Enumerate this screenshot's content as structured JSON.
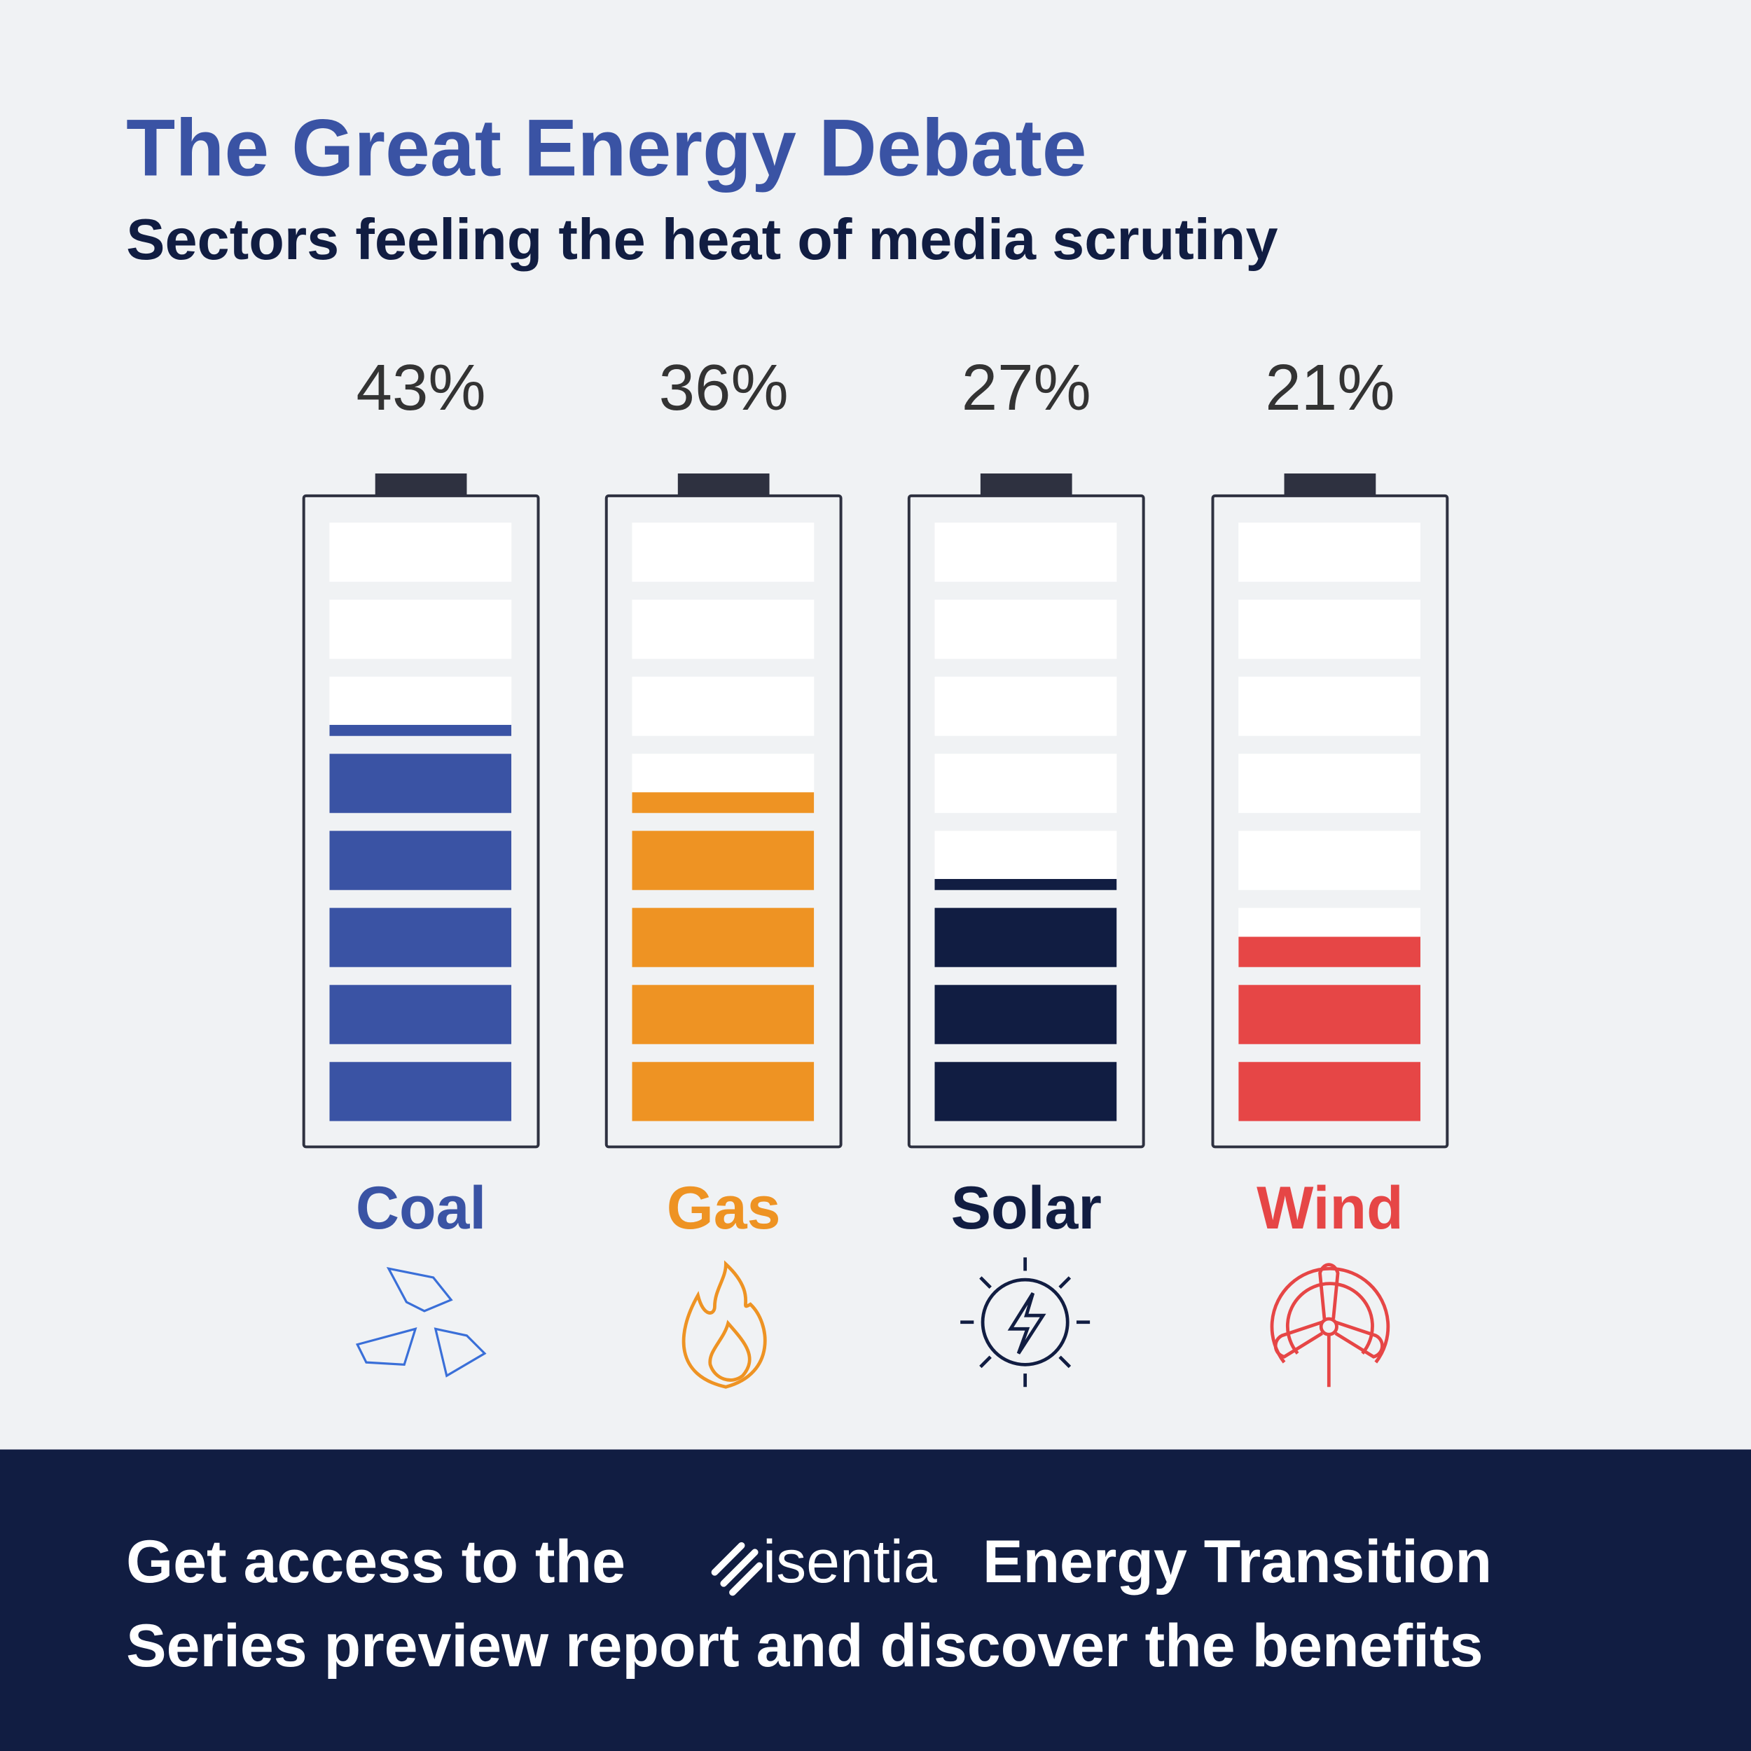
{
  "chart_data": {
    "type": "bar",
    "title": "The Great Energy Debate",
    "subtitle": "Sectors feeling the heat of media scrutiny",
    "categories": [
      "Coal",
      "Gas",
      "Solar",
      "Wind"
    ],
    "values": [
      43,
      36,
      27,
      21
    ],
    "value_labels": [
      "43%",
      "36%",
      "27%",
      "21%"
    ],
    "colors": [
      "#3a53a4",
      "#ee9323",
      "#111d42",
      "#e64646"
    ],
    "ylim": [
      0,
      64
    ]
  },
  "footer": {
    "line1_start": "Get access to the",
    "logo": "isentia",
    "line1_end": "Energy Transition",
    "line2": "Series preview report and discover the benefits"
  }
}
